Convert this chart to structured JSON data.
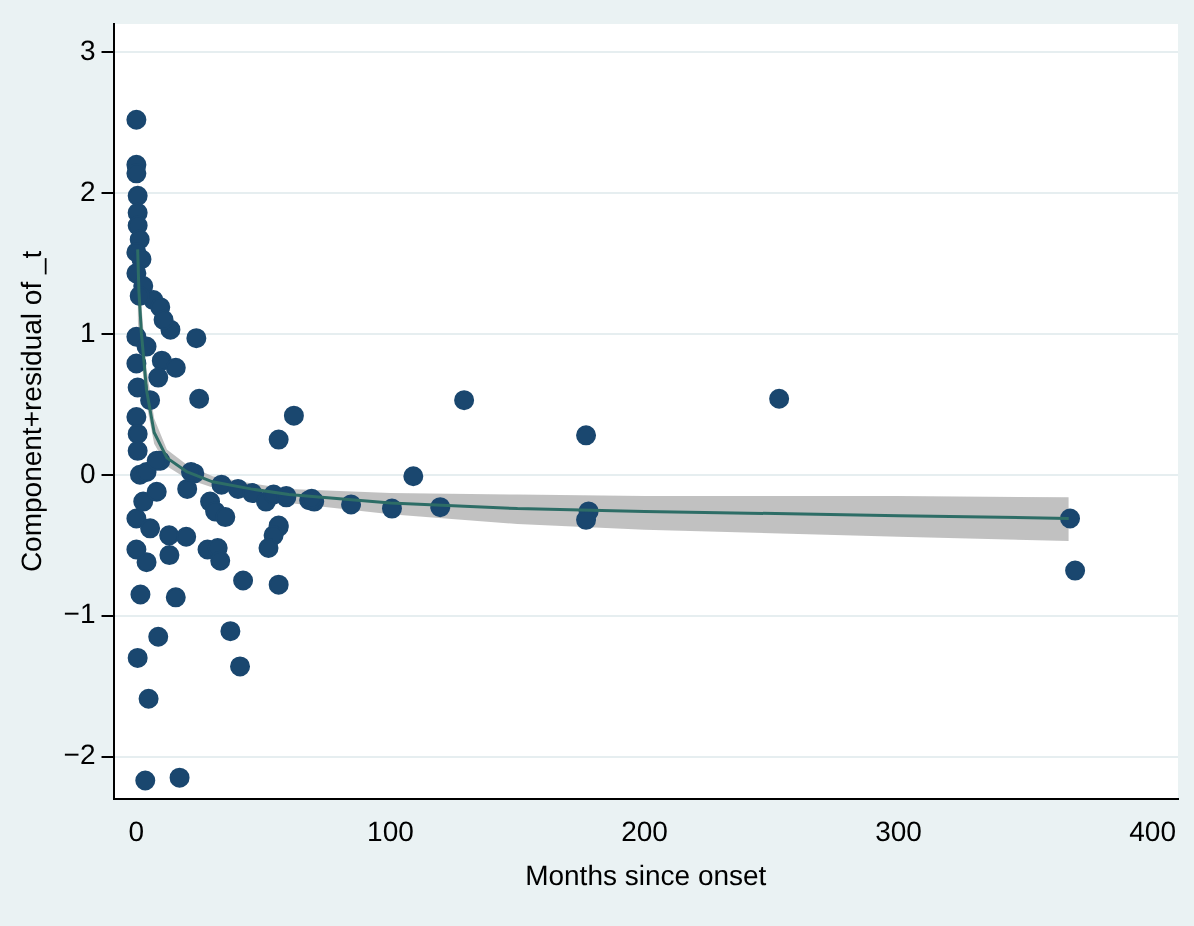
{
  "chart_data": {
    "type": "scatter",
    "xlabel": "Months since onset",
    "ylabel": "Component+residual of _t",
    "xlim": [
      -9,
      410
    ],
    "ylim": [
      -2.3,
      3.2
    ],
    "xticks": [
      0,
      100,
      200,
      300,
      400
    ],
    "yticks": [
      -2,
      -1,
      0,
      1,
      2,
      3
    ],
    "grid": "y",
    "legend": false,
    "marker": "circle",
    "series": [
      {
        "color": "#1a476f",
        "x": [
          62,
          129,
          56,
          109,
          177,
          253,
          59,
          68,
          70,
          84.5,
          100.6,
          119.6,
          178,
          177,
          367.5,
          369.5,
          56,
          56,
          1.4,
          20,
          22.8,
          33.5,
          29,
          31,
          35,
          40,
          45.6,
          51,
          54,
          59,
          69,
          56,
          54,
          52,
          28,
          32,
          33,
          42,
          15.5,
          1.6,
          8.6,
          0.5,
          37,
          40.8,
          4.8,
          3.5,
          17,
          12.9,
          19.6,
          13,
          4,
          0,
          0,
          2.7,
          8,
          5.4,
          9.4,
          0,
          0,
          0,
          0.5,
          0.5,
          0.5,
          1.3,
          0,
          2,
          0,
          2.7,
          6.7,
          9.4,
          13.4,
          23.6,
          0,
          10,
          15.5,
          0,
          8.6,
          0.5,
          24.7,
          5.4,
          0,
          0.5,
          0.5,
          21.5,
          4,
          8,
          10.7,
          4,
          1.3
        ],
        "values": [
          0.42,
          0.53,
          0.25,
          -0.01,
          0.28,
          0.54,
          -0.16,
          -0.18,
          -0.19,
          -0.21,
          -0.24,
          -0.23,
          -0.26,
          -0.32,
          -0.31,
          -0.68,
          -0.37,
          -0.78,
          0,
          -0.1,
          0.01,
          -0.07,
          -0.19,
          -0.26,
          -0.3,
          -0.1,
          -0.13,
          -0.19,
          -0.14,
          -0.15,
          -0.17,
          -0.36,
          -0.43,
          -0.52,
          -0.53,
          -0.52,
          -0.61,
          -0.75,
          -0.87,
          -0.85,
          -1.15,
          -1.3,
          -1.11,
          -1.36,
          -1.59,
          -2.17,
          -2.15,
          -0.43,
          -0.44,
          -0.57,
          -0.62,
          -0.53,
          -0.31,
          -0.19,
          -0.12,
          -0.38,
          0.1,
          2.52,
          2.2,
          2.14,
          1.98,
          1.86,
          1.77,
          1.67,
          1.58,
          1.53,
          1.43,
          1.34,
          1.24,
          1.19,
          1.03,
          0.97,
          0.98,
          0.81,
          0.76,
          0.79,
          0.69,
          0.62,
          0.54,
          0.53,
          0.41,
          0.29,
          0.17,
          0.02,
          0.02,
          0.1,
          1.1,
          0.91,
          1.27
        ]
      },
      {
        "type": "line",
        "color": "#2d6d66",
        "marker": "none",
        "x": [
          0.5,
          1,
          2,
          4,
          7,
          12,
          20,
          30,
          45,
          60,
          100,
          150,
          200,
          300,
          367
        ],
        "values": [
          1.6,
          1.3,
          1.0,
          0.6,
          0.3,
          0.12,
          0.02,
          -0.05,
          -0.1,
          -0.14,
          -0.2,
          -0.24,
          -0.26,
          -0.29,
          -0.31
        ],
        "lower": [
          1.1,
          1.0,
          0.8,
          0.5,
          0.22,
          0.06,
          -0.03,
          -0.09,
          -0.14,
          -0.2,
          -0.28,
          -0.35,
          -0.39,
          -0.44,
          -0.47
        ],
        "upper": [
          2.3,
          1.7,
          1.2,
          0.75,
          0.4,
          0.18,
          0.07,
          -0.01,
          -0.06,
          -0.1,
          -0.13,
          -0.14,
          -0.15,
          -0.15,
          -0.16
        ]
      }
    ]
  }
}
